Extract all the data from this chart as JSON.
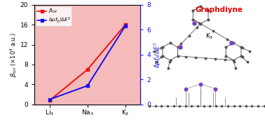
{
  "categories": [
    "Li$_3$",
    "Na$_3$",
    "K$_3$"
  ],
  "beta_tot": [
    0.8,
    7.0,
    16.0
  ],
  "delta_mu": [
    0.4,
    1.5,
    6.3
  ],
  "ylim_left": [
    0,
    20
  ],
  "ylim_right": [
    0.0,
    8.0
  ],
  "yticks_left": [
    0,
    4,
    8,
    12,
    16,
    20
  ],
  "yticks_right": [
    0.0,
    2.0,
    4.0,
    6.0,
    8.0
  ],
  "ylabel_left": "$\\beta_{tot}$ ($\\times$10$^4$ a.u.)",
  "ylabel_right": "$\\Delta\\mu f_0/\\Delta E^2$",
  "legend_beta": "$\\beta_{tot}$",
  "legend_delta": "$\\Delta\\mu f_0/\\Delta E^2$",
  "line_color_red": "#EE1111",
  "line_color_blue": "#1111EE",
  "bg_color_left": "#F5BBBB",
  "graphdiyne_text": "Graphdiyne",
  "graphdiyne_color": "#EE0000",
  "k3_label": "K$_3$",
  "figsize": [
    3.78,
    1.71
  ],
  "dpi": 100
}
